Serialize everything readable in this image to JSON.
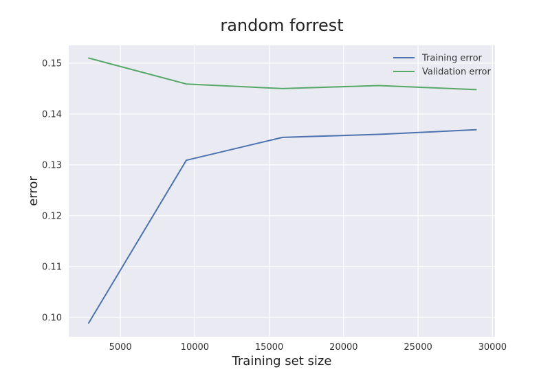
{
  "chart_data": {
    "type": "line",
    "title": "random forrest",
    "xlabel": "Training set size",
    "ylabel": "error",
    "x": [
      2870,
      9430,
      15890,
      22350,
      28900
    ],
    "xlim": [
      1530,
      30170
    ],
    "ylim": [
      0.0962,
      0.1535
    ],
    "xticks": [
      5000,
      10000,
      15000,
      20000,
      25000,
      30000
    ],
    "yticks": [
      0.1,
      0.11,
      0.12,
      0.13,
      0.14,
      0.15
    ],
    "xtick_labels": [
      "5000",
      "10000",
      "15000",
      "20000",
      "25000",
      "30000"
    ],
    "ytick_labels": [
      "0.10",
      "0.11",
      "0.12",
      "0.13",
      "0.14",
      "0.15"
    ],
    "grid": true,
    "legend_position": "top-right",
    "series": [
      {
        "name": "Training error",
        "color": "#4c72b0",
        "values": [
          0.0989,
          0.1309,
          0.1354,
          0.136,
          0.1369
        ]
      },
      {
        "name": "Validation error",
        "color": "#55a868",
        "values": [
          0.151,
          0.1459,
          0.145,
          0.1456,
          0.1448
        ]
      }
    ]
  }
}
